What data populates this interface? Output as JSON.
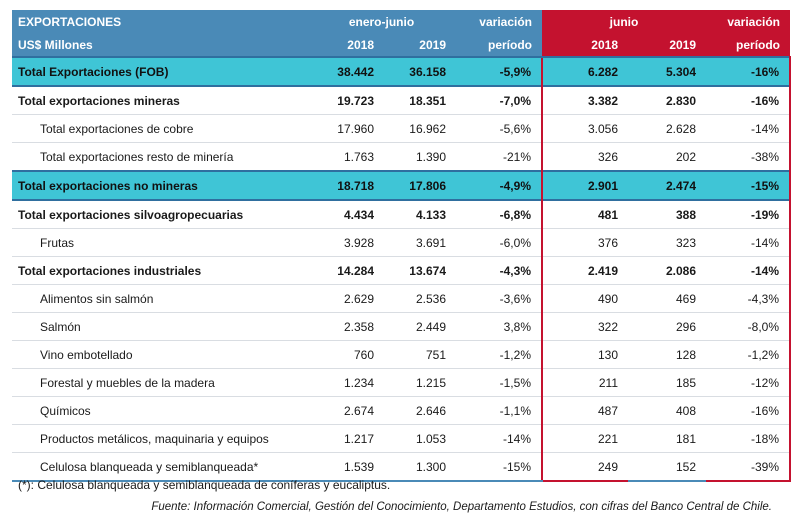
{
  "header": {
    "title": "EXPORTACIONES",
    "unit": "US$ Millones",
    "period_ytd": "enero-junio",
    "period_month": "junio",
    "variation": "variación",
    "variation_sub": "período",
    "years": [
      "2018",
      "2019"
    ]
  },
  "rows": [
    {
      "label": "Total Exportaciones (FOB)",
      "a": "38.442",
      "b": "36.158",
      "va": "-5,9%",
      "c": "6.282",
      "d": "5.304",
      "vb": "-16%"
    },
    {
      "label": "Total exportaciones mineras",
      "a": "19.723",
      "b": "18.351",
      "va": "-7,0%",
      "c": "3.382",
      "d": "2.830",
      "vb": "-16%"
    },
    {
      "label": "Total exportaciones de cobre",
      "a": "17.960",
      "b": "16.962",
      "va": "-5,6%",
      "c": "3.056",
      "d": "2.628",
      "vb": "-14%"
    },
    {
      "label": "Total exportaciones resto de minería",
      "a": "1.763",
      "b": "1.390",
      "va": "-21%",
      "c": "326",
      "d": "202",
      "vb": "-38%"
    },
    {
      "label": "Total exportaciones no mineras",
      "a": "18.718",
      "b": "17.806",
      "va": "-4,9%",
      "c": "2.901",
      "d": "2.474",
      "vb": "-15%"
    },
    {
      "label": "Total exportaciones silvoagropecuarias",
      "a": "4.434",
      "b": "4.133",
      "va": "-6,8%",
      "c": "481",
      "d": "388",
      "vb": "-19%"
    },
    {
      "label": "Frutas",
      "a": "3.928",
      "b": "3.691",
      "va": "-6,0%",
      "c": "376",
      "d": "323",
      "vb": "-14%"
    },
    {
      "label": "Total exportaciones industriales",
      "a": "14.284",
      "b": "13.674",
      "va": "-4,3%",
      "c": "2.419",
      "d": "2.086",
      "vb": "-14%"
    },
    {
      "label": "Alimentos sin salmón",
      "a": "2.629",
      "b": "2.536",
      "va": "-3,6%",
      "c": "490",
      "d": "469",
      "vb": "-4,3%"
    },
    {
      "label": "Salmón",
      "a": "2.358",
      "b": "2.449",
      "va": "3,8%",
      "c": "322",
      "d": "296",
      "vb": "-8,0%"
    },
    {
      "label": "Vino embotellado",
      "a": "760",
      "b": "751",
      "va": "-1,2%",
      "c": "130",
      "d": "128",
      "vb": "-1,2%"
    },
    {
      "label": "Forestal y muebles de la madera",
      "a": "1.234",
      "b": "1.215",
      "va": "-1,5%",
      "c": "211",
      "d": "185",
      "vb": "-12%"
    },
    {
      "label": "Químicos",
      "a": "2.674",
      "b": "2.646",
      "va": "-1,1%",
      "c": "487",
      "d": "408",
      "vb": "-16%"
    },
    {
      "label": "Productos metálicos, maquinaria y equipos",
      "a": "1.217",
      "b": "1.053",
      "va": "-14%",
      "c": "221",
      "d": "181",
      "vb": "-18%"
    },
    {
      "label": "Celulosa blanqueada y semiblanqueada*",
      "a": "1.539",
      "b": "1.300",
      "va": "-15%",
      "c": "249",
      "d": "152",
      "vb": "-39%"
    }
  ],
  "footnote": "(*): Celulosa blanqueada y semiblanqueada de coníferas y eucaliptus.",
  "source": "Fuente: Información Comercial, Gestión del Conocimiento, Departamento Estudios, con cifras del Banco Central de Chile."
}
